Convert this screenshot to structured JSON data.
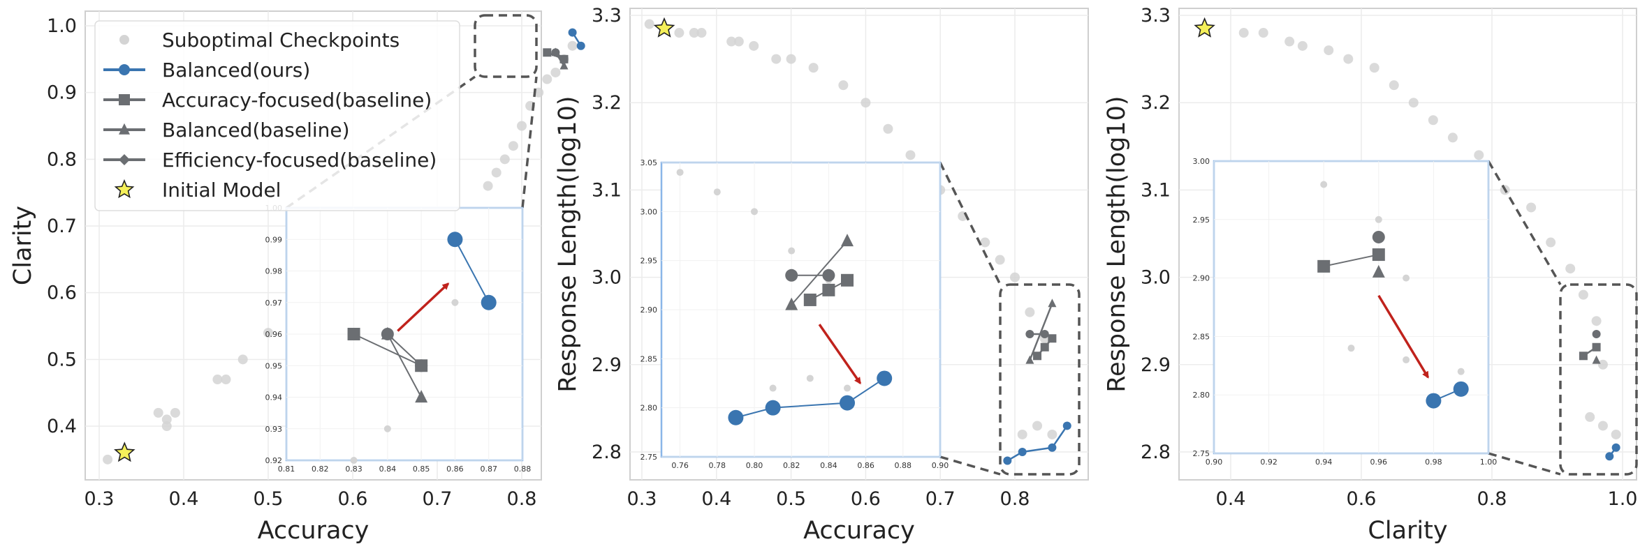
{
  "colors": {
    "balanced_ours": "#3a75b0",
    "baseline": "#6b6e72",
    "suboptimal": "#d4d4d4",
    "star_fill": "#f5f05a",
    "arrow": "#c0221c",
    "inset_border": "#8ab6e8",
    "zoom_box": "#555555",
    "grid": "#ececec"
  },
  "legend": {
    "suboptimal": "Suboptimal Checkpoints",
    "balanced_ours": "Balanced(ours)",
    "accuracy_focused": "Accuracy-focused(baseline)",
    "balanced_baseline": "Balanced(baseline)",
    "efficiency_focused": "Efficiency-focused(baseline)",
    "initial_model": "Initial Model"
  },
  "chart_data": [
    {
      "type": "scatter",
      "xlabel": "Accuracy",
      "ylabel": "Clarity",
      "xlim": [
        0.28,
        0.89
      ],
      "ylim": [
        0.3,
        1.02
      ],
      "xticks": [
        "0.3",
        "0.4",
        "0.5",
        "0.6",
        "0.7",
        "0.8"
      ],
      "yticks": [
        "0.4",
        "0.5",
        "0.6",
        "0.7",
        "0.8",
        "0.9",
        "1.0"
      ],
      "grid": true,
      "legend_position": "upper-left",
      "initial_model": {
        "x": 0.33,
        "y": 0.36
      },
      "suboptimal_sample": [
        [
          0.31,
          0.35
        ],
        [
          0.37,
          0.42
        ],
        [
          0.38,
          0.41
        ],
        [
          0.38,
          0.4
        ],
        [
          0.39,
          0.42
        ],
        [
          0.44,
          0.47
        ],
        [
          0.45,
          0.47
        ],
        [
          0.47,
          0.5
        ],
        [
          0.5,
          0.54
        ],
        [
          0.76,
          0.76
        ],
        [
          0.77,
          0.78
        ],
        [
          0.78,
          0.8
        ],
        [
          0.79,
          0.82
        ],
        [
          0.8,
          0.85
        ],
        [
          0.81,
          0.88
        ],
        [
          0.82,
          0.9
        ],
        [
          0.83,
          0.92
        ],
        [
          0.84,
          0.93
        ],
        [
          0.85,
          0.95
        ],
        [
          0.86,
          0.97
        ]
      ],
      "series": [
        {
          "name": "Balanced(ours)",
          "x": [
            0.86,
            0.87
          ],
          "y": [
            0.99,
            0.97
          ]
        },
        {
          "name": "Accuracy-focused(baseline)",
          "x": [
            0.83,
            0.85
          ],
          "y": [
            0.96,
            0.95
          ]
        },
        {
          "name": "Balanced(baseline)",
          "x": [
            0.84,
            0.85
          ],
          "y": [
            0.96,
            0.94
          ]
        },
        {
          "name": "Efficiency-focused(baseline)",
          "x": [
            0.84,
            0.85
          ],
          "y": [
            0.96,
            0.95
          ]
        }
      ],
      "inset": {
        "xlim": [
          0.81,
          0.88
        ],
        "ylim": [
          0.92,
          1.0
        ],
        "xticks": [
          "0.81",
          "0.82",
          "0.83",
          "0.84",
          "0.85",
          "0.86",
          "0.87",
          "0.88"
        ],
        "yticks": [
          "0.92",
          "0.93",
          "0.94",
          "0.95",
          "0.96",
          "0.97",
          "0.98",
          "0.99",
          "1.00"
        ],
        "arrow": {
          "from": [
            0.843,
            0.961
          ],
          "to": [
            0.858,
            0.976
          ]
        }
      }
    },
    {
      "type": "scatter",
      "xlabel": "Accuracy",
      "ylabel": "Response Length(log10)",
      "xlim": [
        0.28,
        0.89
      ],
      "ylim": [
        2.77,
        3.32
      ],
      "xticks": [
        "0.3",
        "0.4",
        "0.5",
        "0.6",
        "0.7",
        "0.8"
      ],
      "yticks": [
        "2.8",
        "2.9",
        "3.0",
        "3.1",
        "3.2",
        "3.3"
      ],
      "grid": true,
      "initial_model": {
        "x": 0.33,
        "y": 3.285
      },
      "suboptimal_sample": [
        [
          0.31,
          3.29
        ],
        [
          0.35,
          3.28
        ],
        [
          0.37,
          3.28
        ],
        [
          0.38,
          3.28
        ],
        [
          0.42,
          3.27
        ],
        [
          0.43,
          3.27
        ],
        [
          0.45,
          3.265
        ],
        [
          0.48,
          3.25
        ],
        [
          0.5,
          3.25
        ],
        [
          0.53,
          3.24
        ],
        [
          0.57,
          3.22
        ],
        [
          0.6,
          3.2
        ],
        [
          0.63,
          3.17
        ],
        [
          0.66,
          3.14
        ],
        [
          0.7,
          3.1
        ],
        [
          0.73,
          3.07
        ],
        [
          0.76,
          3.04
        ],
        [
          0.78,
          3.02
        ],
        [
          0.8,
          3.0
        ],
        [
          0.82,
          2.96
        ],
        [
          0.84,
          2.93
        ],
        [
          0.81,
          2.82
        ],
        [
          0.83,
          2.83
        ],
        [
          0.85,
          2.82
        ]
      ],
      "series": [
        {
          "name": "Balanced(ours)",
          "x": [
            0.79,
            0.81,
            0.85,
            0.87
          ],
          "y": [
            2.79,
            2.8,
            2.805,
            2.83
          ]
        },
        {
          "name": "Accuracy-focused(baseline)",
          "x": [
            0.83,
            0.84,
            0.85
          ],
          "y": [
            2.91,
            2.92,
            2.93
          ]
        },
        {
          "name": "Balanced(baseline)",
          "x": [
            0.82,
            0.85
          ],
          "y": [
            2.905,
            2.97
          ]
        },
        {
          "name": "Efficiency-focused(baseline)",
          "x": [
            0.82,
            0.84
          ],
          "y": [
            2.935,
            2.935
          ]
        }
      ],
      "inset": {
        "xlim": [
          0.75,
          0.9
        ],
        "ylim": [
          2.75,
          3.05
        ],
        "xticks": [
          "0.76",
          "0.78",
          "0.80",
          "0.82",
          "0.84",
          "0.86",
          "0.88",
          "0.90"
        ],
        "yticks": [
          "2.75",
          "2.80",
          "2.85",
          "2.90",
          "2.95",
          "3.00",
          "3.05"
        ],
        "arrow": {
          "from": [
            0.835,
            2.885
          ],
          "to": [
            0.857,
            2.825
          ]
        }
      }
    },
    {
      "type": "scatter",
      "xlabel": "Clarity",
      "ylabel": "Response Length(log10)",
      "xlim": [
        0.33,
        1.005
      ],
      "ylim": [
        2.77,
        3.32
      ],
      "xticks": [
        "0.4",
        "0.6",
        "0.8",
        "1.0"
      ],
      "yticks": [
        "2.8",
        "2.9",
        "3.0",
        "3.1",
        "3.2",
        "3.3"
      ],
      "grid": true,
      "initial_model": {
        "x": 0.36,
        "y": 3.285
      },
      "suboptimal_sample": [
        [
          0.42,
          3.28
        ],
        [
          0.45,
          3.28
        ],
        [
          0.49,
          3.27
        ],
        [
          0.51,
          3.265
        ],
        [
          0.55,
          3.26
        ],
        [
          0.58,
          3.25
        ],
        [
          0.62,
          3.24
        ],
        [
          0.65,
          3.22
        ],
        [
          0.68,
          3.2
        ],
        [
          0.71,
          3.18
        ],
        [
          0.74,
          3.16
        ],
        [
          0.78,
          3.14
        ],
        [
          0.82,
          3.1
        ],
        [
          0.86,
          3.08
        ],
        [
          0.89,
          3.04
        ],
        [
          0.92,
          3.01
        ],
        [
          0.94,
          2.98
        ],
        [
          0.96,
          2.95
        ],
        [
          0.97,
          2.9
        ],
        [
          0.95,
          2.84
        ],
        [
          0.97,
          2.83
        ],
        [
          0.99,
          2.82
        ]
      ],
      "series": [
        {
          "name": "Balanced(ours)",
          "x": [
            0.98,
            0.99
          ],
          "y": [
            2.795,
            2.805
          ]
        },
        {
          "name": "Accuracy-focused(baseline)",
          "x": [
            0.94,
            0.96
          ],
          "y": [
            2.91,
            2.92
          ]
        },
        {
          "name": "Balanced(baseline)",
          "x": [
            0.96
          ],
          "y": [
            2.905
          ]
        },
        {
          "name": "Efficiency-focused(baseline)",
          "x": [
            0.96
          ],
          "y": [
            2.935
          ]
        }
      ],
      "inset": {
        "xlim": [
          0.9,
          1.0
        ],
        "ylim": [
          2.75,
          3.0
        ],
        "xticks": [
          "0.90",
          "0.92",
          "0.94",
          "0.96",
          "0.98",
          "1.00"
        ],
        "yticks": [
          "2.75",
          "2.80",
          "2.85",
          "2.90",
          "2.95",
          "3.00"
        ],
        "arrow": {
          "from": [
            0.96,
            2.885
          ],
          "to": [
            0.978,
            2.815
          ]
        }
      }
    }
  ]
}
